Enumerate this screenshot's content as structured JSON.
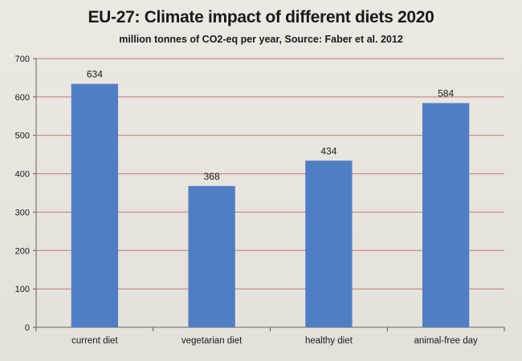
{
  "chart_data": {
    "type": "bar",
    "title": "EU-27: Climate impact of different diets 2020",
    "subtitle": "million tonnes of CO2-eq per year, Source: Faber et al. 2012",
    "xlabel": "",
    "ylabel": "",
    "categories": [
      "current diet",
      "vegetarian diet",
      "healthy diet",
      "animal-free day"
    ],
    "values": [
      634,
      368,
      434,
      584
    ],
    "data_labels": [
      "634",
      "368",
      "434",
      "584"
    ],
    "ylim": [
      0,
      700
    ],
    "yticks": [
      0,
      100,
      200,
      300,
      400,
      500,
      600,
      700
    ],
    "grid": true,
    "legend": "none",
    "bar_color": "#4f7ec4",
    "grid_color": "#c07a72"
  }
}
